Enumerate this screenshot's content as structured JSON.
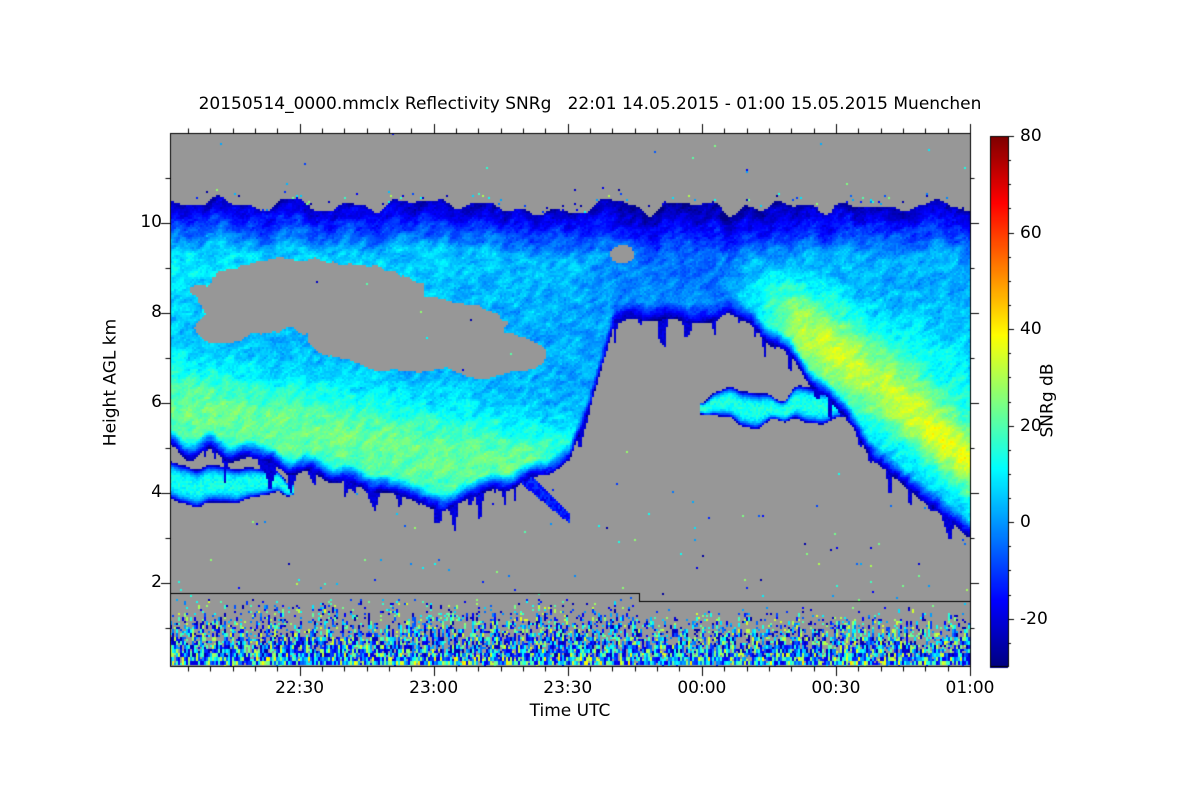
{
  "chart_data": {
    "type": "heatmap",
    "title": "20150514_0000.mmclx Reflectivity SNRg   22:01 14.05.2015 - 01:00 15.05.2015 Muenchen",
    "file": "20150514_0000.mmclx",
    "quantity": "Reflectivity SNRg",
    "time_start": "22:01 14.05.2015",
    "time_end": "01:00 15.05.2015",
    "site": "Muenchen",
    "no_data_color": "#979797",
    "x_axis": {
      "label": "Time UTC",
      "duration_min": 179,
      "major_ticks": [
        {
          "label": "22:30",
          "min": 29
        },
        {
          "label": "23:00",
          "min": 59
        },
        {
          "label": "23:30",
          "min": 89
        },
        {
          "label": "00:00",
          "min": 119
        },
        {
          "label": "00:30",
          "min": 149
        },
        {
          "label": "01:00",
          "min": 179
        }
      ],
      "minor_tick_every_min": 5,
      "minor_tick_offset_min": 4
    },
    "y_axis": {
      "label": "Height AGL km",
      "min_km": 0.13,
      "max_km": 12.0,
      "major_ticks": [
        2,
        4,
        6,
        8,
        10
      ],
      "minor_ticks": [
        1,
        3,
        5,
        7,
        9,
        11
      ]
    },
    "colorbar": {
      "label": "SNRg dB",
      "min": -30,
      "max": 80,
      "major_ticks": [
        80,
        60,
        40,
        20,
        0,
        -20
      ],
      "minor_tick_every": 5,
      "colormap": "jet"
    },
    "instrument_line": {
      "height_left_km": 1.78,
      "height_right_km": 1.6,
      "step_at_min": 105
    },
    "scene": {
      "seed": 7,
      "cloud_top_km": {
        "base": 10.42,
        "slope": -0.1,
        "ripple": 0.5
      },
      "cloud_base_points": [
        [
          0,
          4.92
        ],
        [
          0.08,
          4.8
        ],
        [
          0.16,
          4.5
        ],
        [
          0.24,
          4.15
        ],
        [
          0.3,
          3.8
        ],
        [
          0.34,
          3.52
        ],
        [
          0.4,
          3.95
        ],
        [
          0.46,
          4.35
        ],
        [
          0.5,
          4.6
        ],
        [
          0.555,
          7.85
        ],
        [
          0.64,
          7.9
        ],
        [
          0.7,
          7.8
        ],
        [
          0.76,
          7.25
        ],
        [
          0.82,
          6.15
        ],
        [
          0.88,
          4.85
        ],
        [
          0.94,
          3.9
        ],
        [
          1.0,
          3.2
        ]
      ],
      "holes": [
        [
          0.165,
          8.35,
          0.145,
          0.8
        ],
        [
          0.3,
          7.55,
          0.125,
          0.8
        ],
        [
          0.4,
          7.1,
          0.07,
          0.5
        ],
        [
          0.065,
          7.7,
          0.035,
          0.35
        ],
        [
          0.565,
          9.3,
          0.016,
          0.22
        ]
      ],
      "top_ramp": {
        "v_edge": -24,
        "v_in": 2,
        "depth_km": 1.1
      },
      "base_fringe": {
        "v_edge": -26,
        "depth_km": 0.4
      },
      "upper_left_band": {
        "h": 9.0,
        "sigma": 1.1,
        "amp": 7
      },
      "left_core": {
        "h0": 5.9,
        "slope": -3.2,
        "sigma": 1.15,
        "amp": 21,
        "fade_end": [
          0.5,
          0.6
        ]
      },
      "mid_right_band": {
        "h0": 7.6,
        "slope": -3.5,
        "sigma": 1.3,
        "amp": 8,
        "fade_in": [
          0.68,
          0.78
        ]
      },
      "right_core": {
        "h0": 6.3,
        "t0": 0.888,
        "slope": -14.3,
        "sigma": 1.05,
        "amp": 22,
        "fade_in": [
          0.68,
          0.8
        ],
        "tip_amp": 11,
        "tip_sigma": 0.6,
        "tip_fade": [
          0.86,
          0.99
        ]
      },
      "central_dim": {
        "amp": 6,
        "t_window": [
          0.5,
          0.76
        ],
        "h": 9.2,
        "sigma": 1.5
      },
      "streak_noise_amp": 17,
      "fingers": {
        "max_depth_km": 0.7,
        "freq": 160,
        "thresh": 0.6
      },
      "tongue": {
        "t0": 0.42,
        "t1": 0.5,
        "h_at_t0": 4.7,
        "slope": -16,
        "half_width": 0.22,
        "v": -14
      },
      "detached_clouds": [
        {
          "t0": -0.1,
          "t1": 0.155,
          "hc": 4.18,
          "hc_slope": 0.0,
          "w": 0.42,
          "v": 13
        },
        {
          "t0": 0.663,
          "t1": 0.86,
          "hc": 6.02,
          "hc_slope": -0.6,
          "w": 0.44,
          "v": 14,
          "dip_t": 0.762
        }
      ],
      "noise_band": {
        "gap_below_line_km": 0.12,
        "bottom_km": 0.13,
        "p_min": 0.12,
        "p_max": 0.9,
        "v_min": -26,
        "v_span": 62
      },
      "sparse_speckles": {
        "p_low": 0.006,
        "p_mid": 0.003,
        "p_high": 0.0008,
        "p_top_fringe": 0.04,
        "v_min": -27,
        "v_span": 58
      }
    }
  }
}
